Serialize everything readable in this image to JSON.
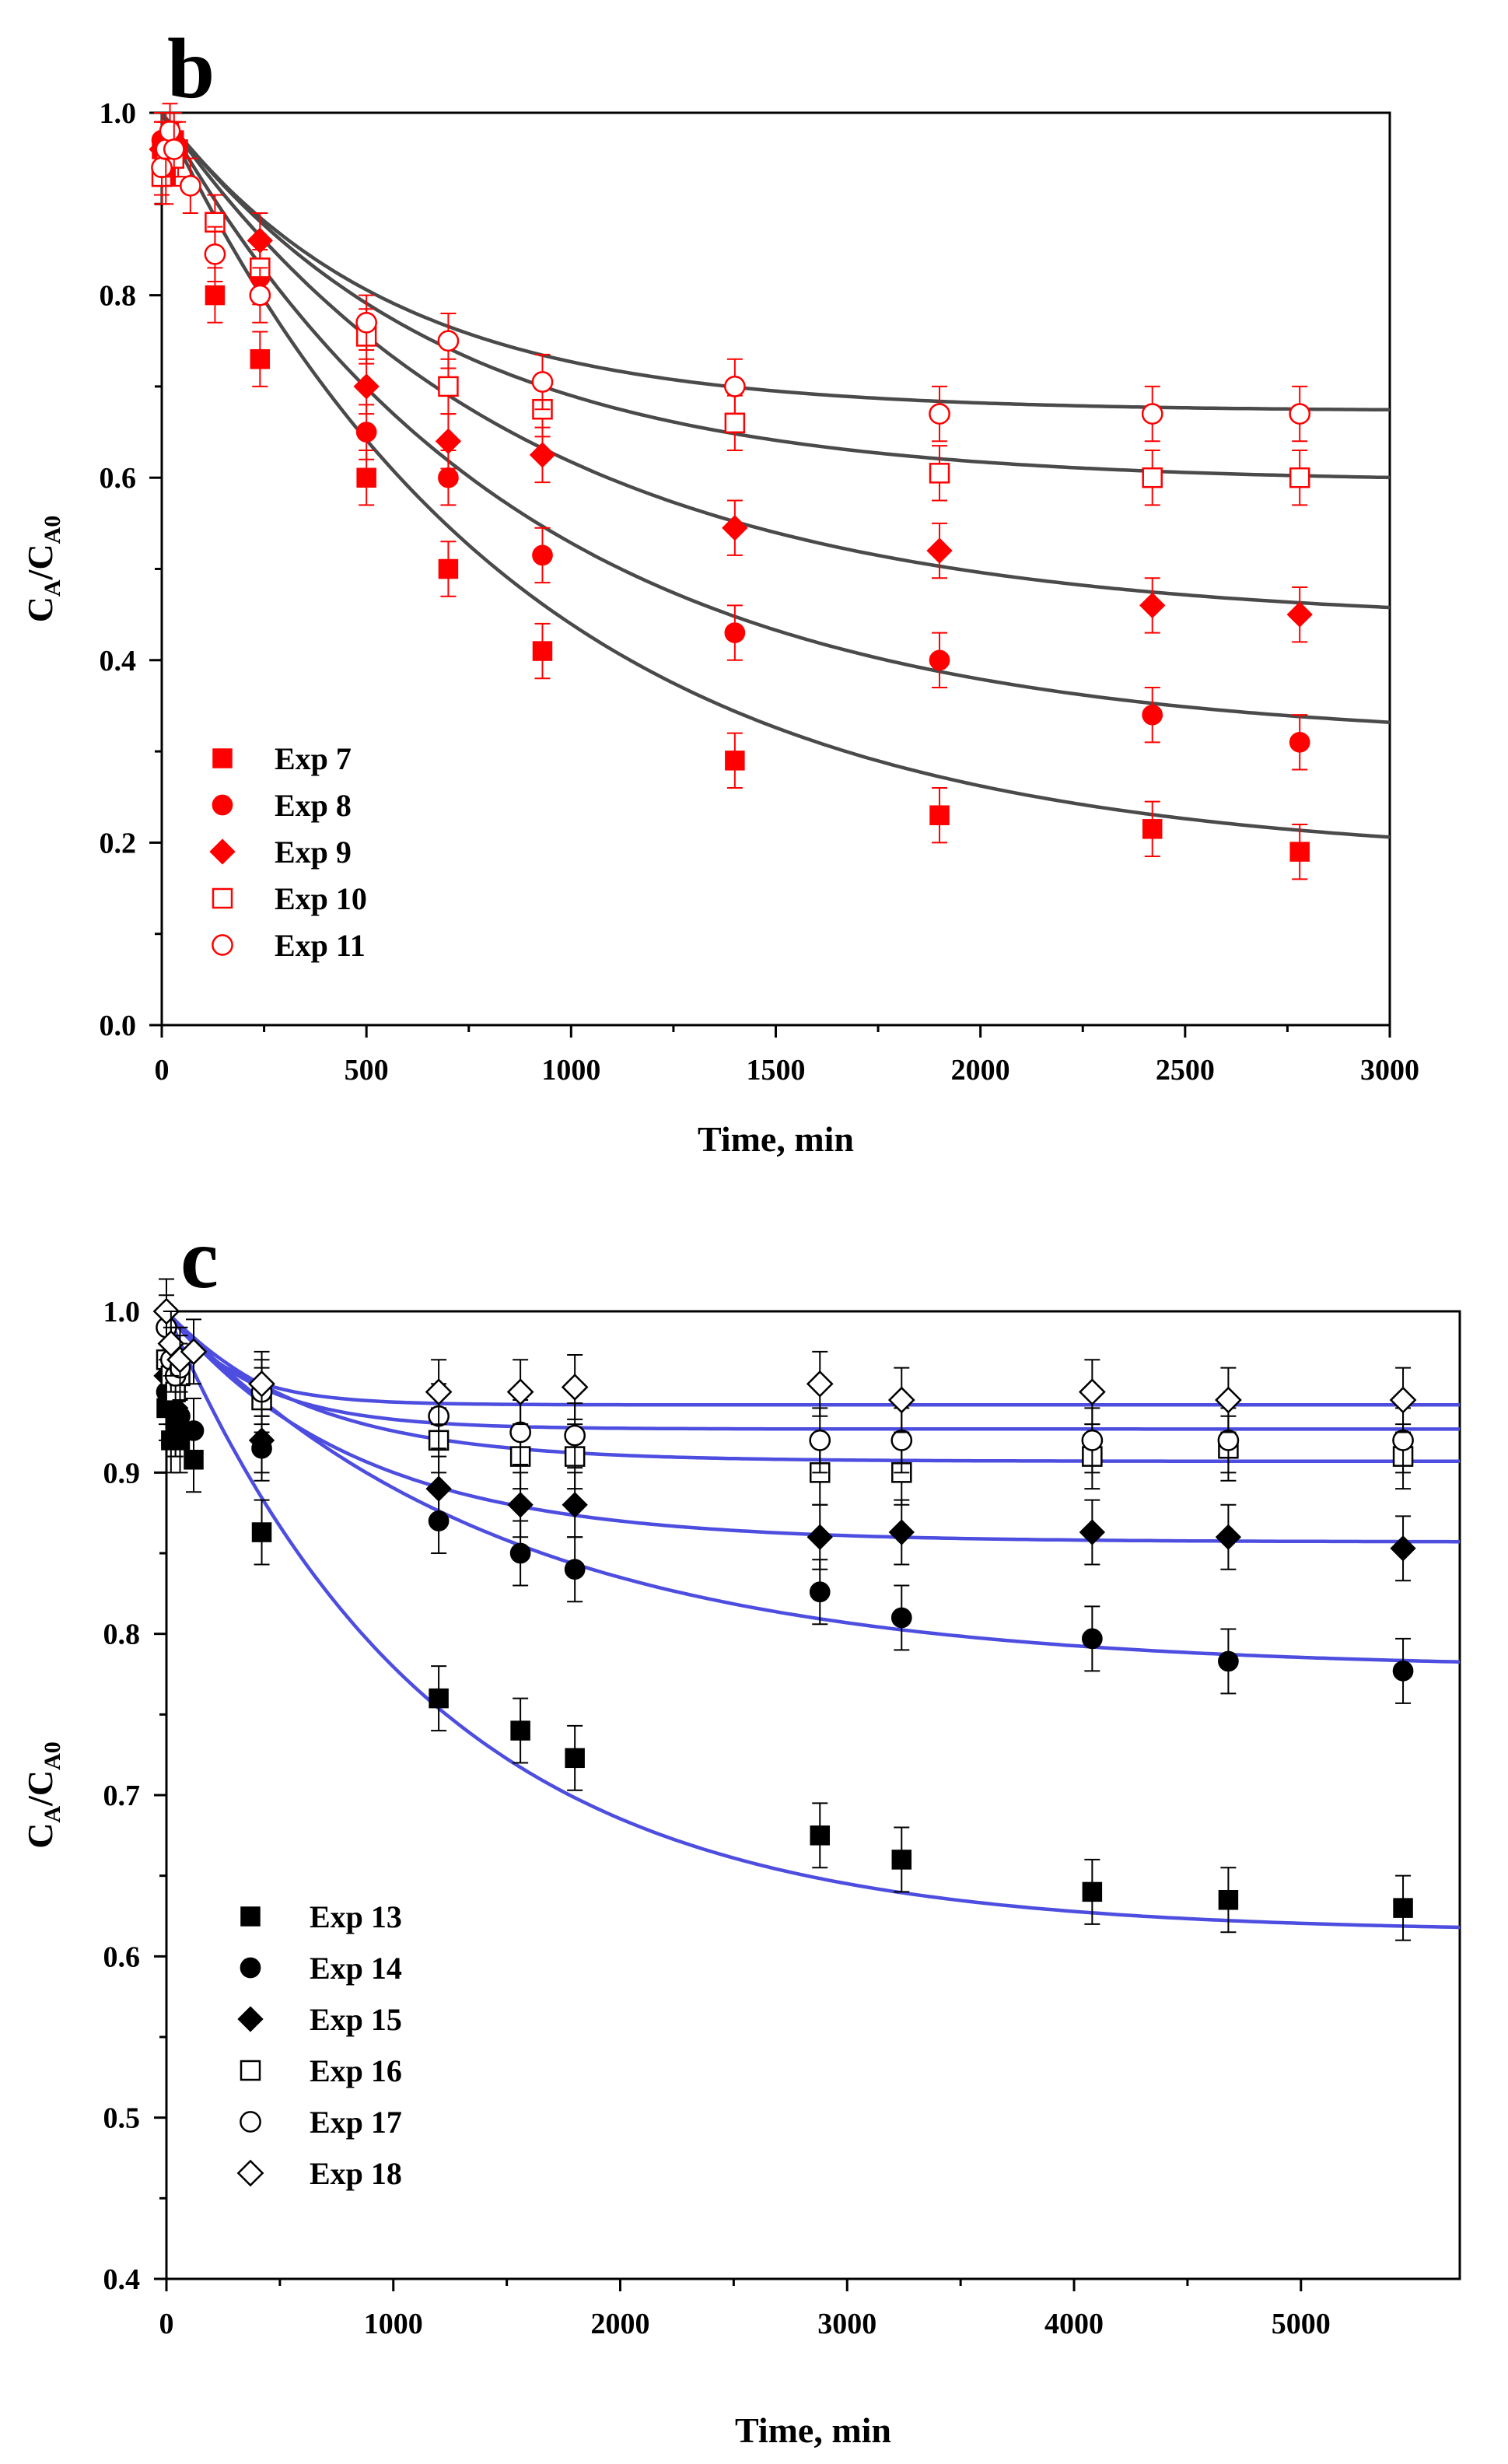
{
  "chart_data": [
    {
      "panel": "b",
      "type": "scatter",
      "xlabel": "Time, min",
      "ylabel_main": "C",
      "ylabel_sub1": "A",
      "ylabel_mid": "/C",
      "ylabel_sub2": "A0",
      "xlim": [
        0,
        3000
      ],
      "ylim": [
        0.0,
        1.0
      ],
      "xticks": [
        0,
        500,
        1000,
        1500,
        2000,
        2500,
        3000
      ],
      "yticks": [
        0.0,
        0.2,
        0.4,
        0.6,
        0.8,
        1.0
      ],
      "ytick_labels": [
        "0.0",
        "0.2",
        "0.4",
        "0.6",
        "0.8",
        "1.0"
      ],
      "legend_position": "lower-left",
      "marker_color": "#ff0000",
      "curve_color": "#4a4a4a",
      "error_bar": 0.03,
      "series": [
        {
          "name": "Exp 7",
          "marker": "square",
          "filled": true,
          "x": [
            0,
            10,
            20,
            30,
            40,
            130,
            240,
            500,
            700,
            930,
            1400,
            1900,
            2420,
            2780
          ],
          "y": [
            0.96,
            0.93,
            0.95,
            0.97,
            0.96,
            0.8,
            0.73,
            0.6,
            0.5,
            0.41,
            0.29,
            0.23,
            0.215,
            0.19
          ],
          "fit": {
            "c_inf": 0.18,
            "amp": 0.82,
            "k": 0.00115
          }
        },
        {
          "name": "Exp 8",
          "marker": "circle",
          "filled": true,
          "x": [
            0,
            10,
            20,
            30,
            240,
            500,
            700,
            930,
            1400,
            1900,
            2420,
            2780
          ],
          "y": [
            0.97,
            0.96,
            0.97,
            0.96,
            0.82,
            0.65,
            0.6,
            0.515,
            0.43,
            0.4,
            0.34,
            0.31
          ],
          "fit": {
            "c_inf": 0.31,
            "amp": 0.69,
            "k": 0.00115
          }
        },
        {
          "name": "Exp 9",
          "marker": "diamond",
          "filled": true,
          "x": [
            0,
            10,
            20,
            240,
            500,
            700,
            930,
            1400,
            1900,
            2420,
            2780
          ],
          "y": [
            0.96,
            0.97,
            0.96,
            0.86,
            0.7,
            0.64,
            0.625,
            0.545,
            0.52,
            0.46,
            0.45
          ],
          "fit": {
            "c_inf": 0.44,
            "amp": 0.56,
            "k": 0.00115
          }
        },
        {
          "name": "Exp 10",
          "marker": "square",
          "filled": false,
          "x": [
            0,
            10,
            20,
            30,
            130,
            240,
            500,
            700,
            930,
            1400,
            1900,
            2420,
            2780
          ],
          "y": [
            0.93,
            0.95,
            0.96,
            0.95,
            0.88,
            0.83,
            0.755,
            0.7,
            0.675,
            0.66,
            0.605,
            0.6,
            0.6
          ],
          "fit": {
            "c_inf": 0.595,
            "amp": 0.405,
            "k": 0.00145
          }
        },
        {
          "name": "Exp 11",
          "marker": "circle",
          "filled": false,
          "x": [
            0,
            10,
            20,
            30,
            70,
            130,
            240,
            500,
            700,
            930,
            1400,
            1900,
            2420,
            2780
          ],
          "y": [
            0.94,
            0.96,
            0.98,
            0.96,
            0.92,
            0.845,
            0.8,
            0.77,
            0.75,
            0.705,
            0.7,
            0.67,
            0.67,
            0.67
          ],
          "fit": {
            "c_inf": 0.673,
            "amp": 0.327,
            "k": 0.0018
          }
        }
      ]
    },
    {
      "panel": "c",
      "type": "scatter",
      "xlabel": "Time, min",
      "ylabel_main": "C",
      "ylabel_sub1": "A",
      "ylabel_mid": "/C",
      "ylabel_sub2": "A0",
      "xlim": [
        0,
        5700
      ],
      "ylim": [
        0.4,
        1.0
      ],
      "xticks": [
        0,
        1000,
        2000,
        3000,
        4000,
        5000
      ],
      "yticks": [
        0.4,
        0.5,
        0.6,
        0.7,
        0.8,
        0.9,
        1.0
      ],
      "ytick_labels": [
        "0.4",
        "0.5",
        "0.6",
        "0.7",
        "0.8",
        "0.9",
        "1.0"
      ],
      "legend_position": "lower-left",
      "marker_color": "#000000",
      "curve_color": "#4d4de0",
      "error_bar": 0.02,
      "series": [
        {
          "name": "Exp 13",
          "marker": "square",
          "filled": true,
          "x": [
            0,
            20,
            40,
            60,
            120,
            420,
            1200,
            1560,
            1800,
            2880,
            3240,
            4080,
            4680,
            5450
          ],
          "y": [
            0.94,
            0.92,
            0.93,
            0.92,
            0.908,
            0.863,
            0.76,
            0.74,
            0.723,
            0.675,
            0.66,
            0.64,
            0.635,
            0.63
          ],
          "fit": {
            "c_inf": 0.615,
            "amp": 0.385,
            "k": 0.00085
          }
        },
        {
          "name": "Exp 14",
          "marker": "circle",
          "filled": true,
          "x": [
            0,
            20,
            40,
            60,
            120,
            420,
            1200,
            1560,
            1800,
            2880,
            3240,
            4080,
            4680,
            5450
          ],
          "y": [
            0.95,
            0.94,
            0.93,
            0.935,
            0.926,
            0.915,
            0.87,
            0.85,
            0.84,
            0.826,
            0.81,
            0.797,
            0.783,
            0.777
          ],
          "fit": {
            "c_inf": 0.778,
            "amp": 0.222,
            "k": 0.00068
          }
        },
        {
          "name": "Exp 15",
          "marker": "diamond",
          "filled": true,
          "x": [
            0,
            20,
            40,
            420,
            1200,
            1560,
            1800,
            2880,
            3240,
            4080,
            4680,
            5450
          ],
          "y": [
            0.96,
            0.95,
            0.94,
            0.92,
            0.89,
            0.88,
            0.88,
            0.86,
            0.863,
            0.863,
            0.86,
            0.853
          ],
          "fit": {
            "c_inf": 0.857,
            "amp": 0.143,
            "k": 0.0012
          }
        },
        {
          "name": "Exp 16",
          "marker": "square",
          "filled": false,
          "x": [
            0,
            20,
            40,
            60,
            420,
            1200,
            1560,
            1800,
            2880,
            3240,
            4080,
            4680,
            5450
          ],
          "y": [
            0.97,
            0.96,
            0.95,
            0.96,
            0.945,
            0.92,
            0.91,
            0.91,
            0.9,
            0.9,
            0.91,
            0.915,
            0.91
          ],
          "fit": {
            "c_inf": 0.907,
            "amp": 0.093,
            "k": 0.0016
          }
        },
        {
          "name": "Exp 17",
          "marker": "circle",
          "filled": false,
          "x": [
            0,
            20,
            40,
            60,
            420,
            1200,
            1560,
            1800,
            2880,
            3240,
            4080,
            4680,
            5450
          ],
          "y": [
            0.99,
            0.97,
            0.96,
            0.965,
            0.95,
            0.935,
            0.925,
            0.923,
            0.92,
            0.92,
            0.92,
            0.92,
            0.92
          ],
          "fit": {
            "c_inf": 0.927,
            "amp": 0.073,
            "k": 0.0025
          }
        },
        {
          "name": "Exp 18",
          "marker": "diamond",
          "filled": false,
          "x": [
            0,
            20,
            60,
            120,
            420,
            1200,
            1560,
            1800,
            2880,
            3240,
            4080,
            4680,
            5450
          ],
          "y": [
            1.0,
            0.98,
            0.97,
            0.975,
            0.955,
            0.95,
            0.95,
            0.953,
            0.955,
            0.945,
            0.95,
            0.945,
            0.945
          ],
          "fit": {
            "c_inf": 0.942,
            "amp": 0.058,
            "k": 0.0035
          }
        }
      ]
    }
  ]
}
